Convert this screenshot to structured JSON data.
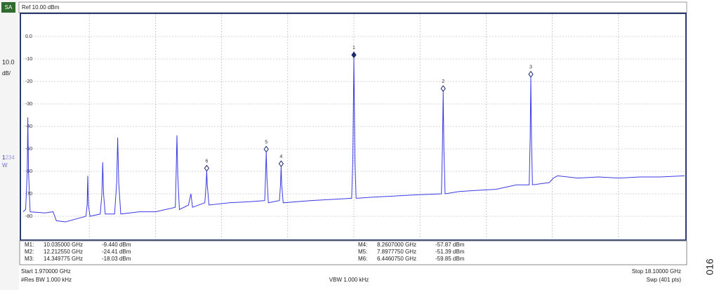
{
  "header": {
    "mode": "SA",
    "reference": "Ref 10.00 dBm"
  },
  "scale": {
    "per_div": "10.0",
    "unit": "dB/",
    "trace_active": "1",
    "trace_inactive": "234",
    "detector": "W"
  },
  "chart_data": {
    "type": "line",
    "xlim": [
      1.97,
      18.1
    ],
    "ylim": [
      -90,
      10
    ],
    "yticks": [
      {
        "value": 0,
        "label": "0.0"
      },
      -10,
      -20,
      -30,
      -40,
      -50,
      -60,
      -70,
      -80
    ],
    "grid": true,
    "series": [
      {
        "color": "#3b3be3",
        "x": [
          1.97,
          2.03,
          2.07,
          2.083,
          2.1,
          2.14,
          2.5,
          2.7,
          2.78,
          3.0,
          3.3,
          3.5,
          3.53,
          3.545,
          3.56,
          3.6,
          3.85,
          3.89,
          3.91,
          3.93,
          3.97,
          4.2,
          4.25,
          4.275,
          4.3,
          4.35,
          4.8,
          5.2,
          5.68,
          5.7,
          5.72,
          5.74,
          5.78,
          6.0,
          6.06,
          6.1,
          6.4,
          6.43,
          6.446075,
          6.46,
          6.5,
          7.0,
          7.5,
          7.86,
          7.88,
          7.897775,
          7.915,
          7.95,
          8.22,
          8.245,
          8.2607,
          8.275,
          8.31,
          9.0,
          9.5,
          9.98,
          10.01,
          10.035,
          10.06,
          10.09,
          10.5,
          11.0,
          11.5,
          12.17,
          12.195,
          12.21255,
          12.23,
          12.26,
          12.6,
          13.0,
          13.5,
          14.0,
          14.31,
          14.335,
          14.349775,
          14.365,
          14.39,
          14.8,
          14.9,
          15.0,
          15.5,
          16.0,
          16.5,
          17.0,
          17.5,
          18.1
        ],
        "values": [
          -78,
          -77,
          -60,
          -36,
          -60,
          -78,
          -78.5,
          -78,
          -82,
          -82.5,
          -81,
          -80,
          -75,
          -62,
          -75,
          -80,
          -79,
          -70,
          -56,
          -70,
          -79,
          -79,
          -65,
          -45,
          -65,
          -79,
          -78,
          -78,
          -76,
          -62,
          -44,
          -62,
          -77,
          -75,
          -70,
          -76,
          -74,
          -66,
          -59.85,
          -66,
          -75,
          -74,
          -73.5,
          -73,
          -63,
          -51.39,
          -63,
          -74,
          -73,
          -66,
          -57.87,
          -66,
          -74,
          -73,
          -72.5,
          -72,
          -55,
          -9.44,
          -55,
          -72,
          -71.5,
          -71,
          -70.5,
          -70,
          -50,
          -24.41,
          -50,
          -70,
          -69,
          -68.5,
          -68,
          -66,
          -66,
          -45,
          -18.03,
          -45,
          -66,
          -65,
          -63,
          -62,
          -63,
          -62.5,
          -63,
          -62.5,
          -62.5,
          -62
        ]
      }
    ],
    "markers": {
      "color": "#1c2a6e",
      "numbers": [
        "1",
        "2",
        "3",
        "4",
        "5",
        "6"
      ],
      "names": [
        "M1:",
        "M2:",
        "M3:",
        "M4:",
        "M5:",
        "M6:"
      ],
      "x": [
        10.035,
        12.21255,
        14.349775,
        8.2607,
        7.897775,
        6.446075
      ],
      "values": [
        -9.44,
        -24.41,
        -18.03,
        -57.87,
        -51.39,
        -59.85
      ],
      "x_labels": [
        "10.035000 GHz",
        "12.212550 GHz",
        "14.349775 GHz",
        "8.2607000 GHz",
        "7.8977750 GHz",
        "6.4460750 GHz"
      ],
      "value_labels": [
        "-9.440 dBm",
        "-24.41 dBm",
        "-18.03 dBm",
        "-57.87 dBm",
        "-51.39 dBm",
        "-59.85 dBm"
      ]
    }
  },
  "footer": {
    "start": "Start 1.970000 GHz",
    "res_bw": "#Res BW 1.000 kHz",
    "vbw": "VBW 1.000 kHz",
    "stop": "Stop 18.10000 GHz",
    "sweep": "Swp (401 pts)"
  },
  "figure_id": "016"
}
